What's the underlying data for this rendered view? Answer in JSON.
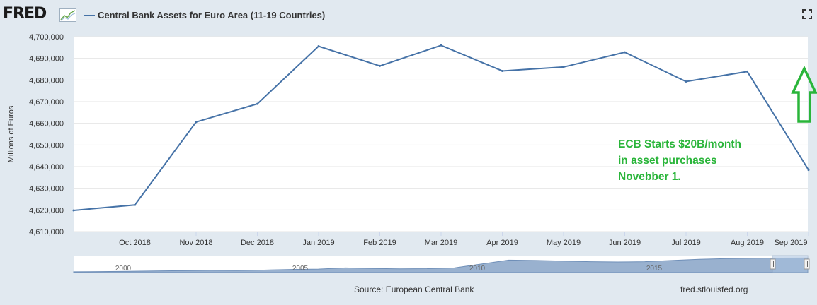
{
  "logo": "FRED",
  "header": {
    "series_name": "Central Bank Assets for Euro Area (11-19 Countries)"
  },
  "footer": {
    "source": "Source: European Central Bank",
    "site": "fred.stlouisfed.org"
  },
  "icons": {
    "fullscreen": "fullscreen-icon",
    "logo_mark": "chart-line-icon",
    "arrow": "up-arrow-icon"
  },
  "colors": {
    "series": "#4572a7",
    "annotation": "#2ab53a",
    "background": "#e1e9f0",
    "plot": "#ffffff"
  },
  "chart_data": {
    "type": "line",
    "title": "",
    "xlabel": "",
    "ylabel": "Millions of Euros",
    "ylim": [
      4610000,
      4700000
    ],
    "yticks": [
      4610000,
      4620000,
      4630000,
      4640000,
      4650000,
      4660000,
      4670000,
      4680000,
      4690000,
      4700000
    ],
    "ytick_labels": [
      "4,610,000",
      "4,620,000",
      "4,630,000",
      "4,640,000",
      "4,650,000",
      "4,660,000",
      "4,670,000",
      "4,680,000",
      "4,690,000",
      "4,700,000"
    ],
    "x_ticks": [
      "Oct 2018",
      "Nov 2018",
      "Dec 2018",
      "Jan 2019",
      "Feb 2019",
      "Mar 2019",
      "Apr 2019",
      "May 2019",
      "Jun 2019",
      "Jul 2019",
      "Aug 2019",
      "Sep 2019"
    ],
    "grid": true,
    "series": [
      {
        "name": "Central Bank Assets for Euro Area (11-19 Countries)",
        "x": [
          "2018-09",
          "2018-10",
          "2018-11",
          "2018-12",
          "2019-01",
          "2019-02",
          "2019-03",
          "2019-04",
          "2019-05",
          "2019-06",
          "2019-07",
          "2019-08",
          "2019-09"
        ],
        "values": [
          4619800,
          4622300,
          4660600,
          4669000,
          4695600,
          4686500,
          4696000,
          4684200,
          4686000,
          4692800,
          4679300,
          4683900,
          4638500
        ]
      }
    ],
    "annotations": [
      {
        "lines": [
          "ECB Starts $20B/month",
          "in asset purchases",
          "Novebber 1."
        ]
      }
    ],
    "navigator": {
      "year_labels": [
        "2000",
        "2005",
        "2010",
        "2015"
      ],
      "levels": [
        0.05,
        0.06,
        0.08,
        0.1,
        0.12,
        0.14,
        0.13,
        0.16,
        0.2,
        0.22,
        0.3,
        0.26,
        0.24,
        0.25,
        0.3,
        0.55,
        0.8,
        0.78,
        0.74,
        0.7,
        0.68,
        0.7,
        0.78,
        0.85,
        0.9,
        0.92,
        0.93,
        0.94
      ]
    }
  }
}
